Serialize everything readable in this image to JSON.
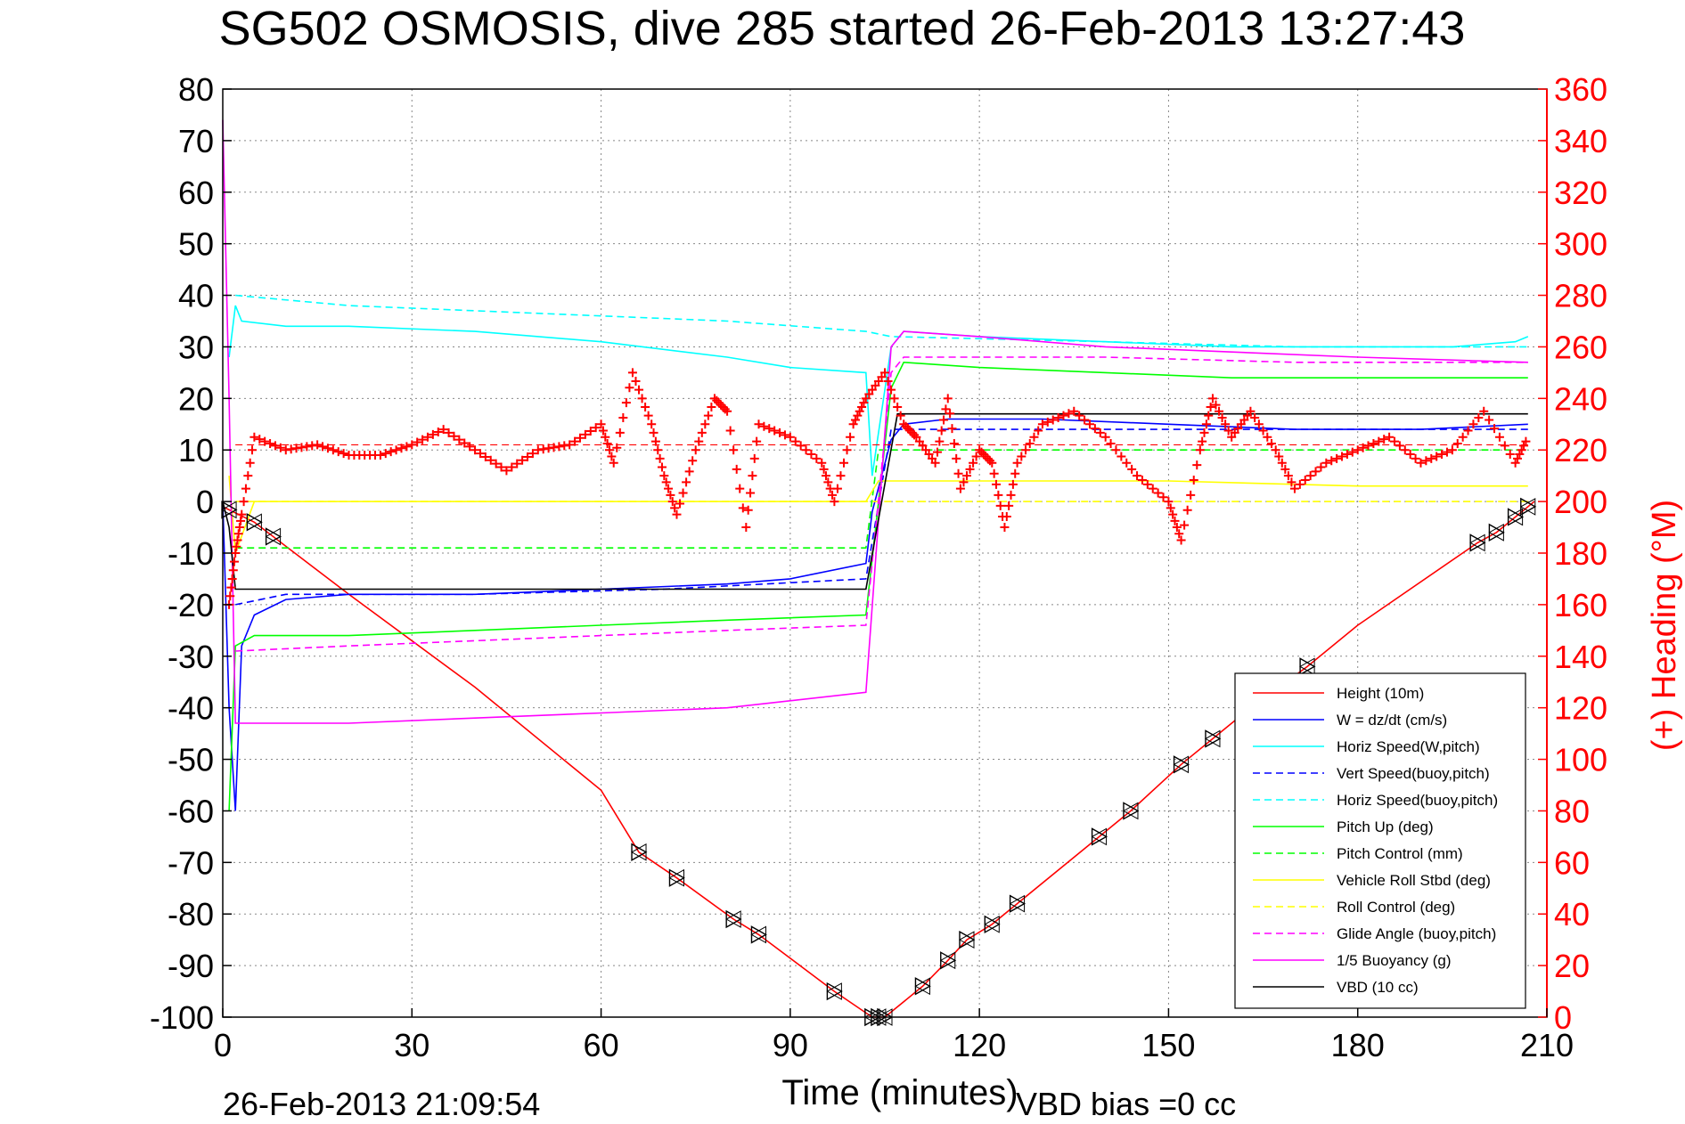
{
  "chart_data": {
    "type": "line",
    "title": "SG502 OSMOSIS, dive 285 started 26-Feb-2013 13:27:43",
    "xlabel": "Time (minutes)",
    "ylabel_right": "(+) Heading (°M)",
    "footer_left": "26-Feb-2013 21:09:54",
    "footer_right": "VBD bias =0 cc",
    "xlim": [
      0,
      210
    ],
    "ylim": [
      -100,
      80
    ],
    "ylim_right": [
      0,
      360
    ],
    "grid": true,
    "legend_position": "lower-right",
    "x_ticks": [
      "0",
      "30",
      "60",
      "90",
      "120",
      "150",
      "180",
      "210"
    ],
    "y_ticks": [
      "80",
      "70",
      "60",
      "50",
      "40",
      "30",
      "20",
      "10",
      "0",
      "-10",
      "-20",
      "-30",
      "-40",
      "-50",
      "-60",
      "-70",
      "-80",
      "-90",
      "-100"
    ],
    "y_ticks_right": [
      "360",
      "340",
      "320",
      "300",
      "280",
      "260",
      "240",
      "220",
      "200",
      "180",
      "160",
      "140",
      "120",
      "100",
      "80",
      "60",
      "40",
      "20",
      "0"
    ],
    "series": [
      {
        "name": "Height (10m)",
        "color": "#ff0000",
        "dash": "solid",
        "axis": "left",
        "points": [
          [
            0,
            -1
          ],
          [
            5,
            -4
          ],
          [
            20,
            -18
          ],
          [
            40,
            -36
          ],
          [
            60,
            -56
          ],
          [
            66,
            -68
          ],
          [
            72,
            -73
          ],
          [
            81,
            -81
          ],
          [
            85,
            -84
          ],
          [
            97,
            -95
          ],
          [
            103,
            -100
          ],
          [
            105,
            -100
          ],
          [
            111,
            -94
          ],
          [
            115,
            -89
          ],
          [
            118,
            -85
          ],
          [
            122,
            -82
          ],
          [
            126,
            -78
          ],
          [
            139,
            -65
          ],
          [
            144,
            -60
          ],
          [
            152,
            -51
          ],
          [
            157,
            -46
          ],
          [
            162,
            -41
          ],
          [
            172,
            -32
          ],
          [
            180,
            -24
          ],
          [
            199,
            -8
          ],
          [
            202,
            -6
          ],
          [
            205,
            -3
          ],
          [
            207,
            -1
          ],
          [
            208,
            0
          ]
        ]
      },
      {
        "name": "W = dz/dt (cm/s)",
        "color": "#0000ff",
        "dash": "solid",
        "axis": "left",
        "points": [
          [
            0,
            0
          ],
          [
            1,
            -40
          ],
          [
            2,
            -60
          ],
          [
            3,
            -28
          ],
          [
            5,
            -22
          ],
          [
            10,
            -19
          ],
          [
            20,
            -18
          ],
          [
            40,
            -18
          ],
          [
            60,
            -17
          ],
          [
            80,
            -16
          ],
          [
            90,
            -15
          ],
          [
            102,
            -12
          ],
          [
            103,
            -2
          ],
          [
            106,
            12
          ],
          [
            108,
            15
          ],
          [
            115,
            16
          ],
          [
            130,
            16
          ],
          [
            150,
            15
          ],
          [
            170,
            14
          ],
          [
            190,
            14
          ],
          [
            207,
            15
          ]
        ]
      },
      {
        "name": "Horiz Speed(W,pitch)",
        "color": "#00ffff",
        "dash": "solid",
        "axis": "left",
        "points": [
          [
            1,
            28
          ],
          [
            2,
            38
          ],
          [
            3,
            35
          ],
          [
            10,
            34
          ],
          [
            20,
            34
          ],
          [
            40,
            33
          ],
          [
            60,
            31
          ],
          [
            80,
            28
          ],
          [
            90,
            26
          ],
          [
            102,
            25
          ],
          [
            103,
            5
          ],
          [
            106,
            30
          ],
          [
            108,
            33
          ],
          [
            120,
            32
          ],
          [
            140,
            31
          ],
          [
            160,
            30
          ],
          [
            180,
            30
          ],
          [
            195,
            30
          ],
          [
            205,
            31
          ],
          [
            207,
            32
          ]
        ]
      },
      {
        "name": "Vert Speed(buoy,pitch)",
        "color": "#0000ff",
        "dash": "dashed",
        "axis": "left",
        "points": [
          [
            2,
            -20
          ],
          [
            10,
            -18
          ],
          [
            40,
            -18
          ],
          [
            70,
            -17
          ],
          [
            102,
            -15
          ],
          [
            106,
            14
          ],
          [
            140,
            14
          ],
          [
            180,
            14
          ],
          [
            207,
            14
          ]
        ]
      },
      {
        "name": "Horiz Speed(buoy,pitch)",
        "color": "#00ffff",
        "dash": "dashed",
        "axis": "left",
        "points": [
          [
            2,
            40
          ],
          [
            20,
            38
          ],
          [
            40,
            37
          ],
          [
            60,
            36
          ],
          [
            80,
            35
          ],
          [
            102,
            33
          ],
          [
            106,
            32
          ],
          [
            140,
            31
          ],
          [
            170,
            30
          ],
          [
            207,
            30
          ]
        ]
      },
      {
        "name": "Pitch Up (deg)",
        "color": "#00ff00",
        "dash": "solid",
        "axis": "left",
        "points": [
          [
            1,
            -60
          ],
          [
            2,
            -28
          ],
          [
            5,
            -26
          ],
          [
            20,
            -26
          ],
          [
            40,
            -25
          ],
          [
            60,
            -24
          ],
          [
            80,
            -23
          ],
          [
            102,
            -22
          ],
          [
            106,
            22
          ],
          [
            108,
            27
          ],
          [
            120,
            26
          ],
          [
            140,
            25
          ],
          [
            160,
            24
          ],
          [
            180,
            24
          ],
          [
            207,
            24
          ]
        ]
      },
      {
        "name": "Pitch Control (mm)",
        "color": "#00ff00",
        "dash": "dashed",
        "axis": "left",
        "points": [
          [
            2,
            -9
          ],
          [
            102,
            -9
          ],
          [
            104,
            10
          ],
          [
            207,
            10
          ]
        ]
      },
      {
        "name": "Vehicle Roll Stbd (deg)",
        "color": "#ffff00",
        "dash": "solid",
        "axis": "left",
        "points": [
          [
            1,
            5
          ],
          [
            2,
            -10
          ],
          [
            5,
            0
          ],
          [
            60,
            0
          ],
          [
            102,
            0
          ],
          [
            104,
            4
          ],
          [
            150,
            4
          ],
          [
            180,
            3
          ],
          [
            207,
            3
          ]
        ]
      },
      {
        "name": "Roll Control (deg)",
        "color": "#ffff00",
        "dash": "dashed",
        "axis": "left",
        "points": [
          [
            2,
            0
          ],
          [
            102,
            0
          ],
          [
            104,
            0
          ],
          [
            207,
            0
          ]
        ]
      },
      {
        "name": "Glide Angle (buoy,pitch)",
        "color": "#ff00ff",
        "dash": "dashed",
        "axis": "left",
        "points": [
          [
            2,
            -29
          ],
          [
            20,
            -28
          ],
          [
            40,
            -27
          ],
          [
            60,
            -26
          ],
          [
            80,
            -25
          ],
          [
            102,
            -24
          ],
          [
            106,
            25
          ],
          [
            108,
            28
          ],
          [
            140,
            28
          ],
          [
            170,
            27
          ],
          [
            207,
            27
          ]
        ]
      },
      {
        "name": "1/5 Buoyancy (g)",
        "color": "#ff00ff",
        "dash": "solid",
        "axis": "left",
        "points": [
          [
            0,
            74
          ],
          [
            1,
            20
          ],
          [
            2,
            -43
          ],
          [
            20,
            -43
          ],
          [
            40,
            -42
          ],
          [
            60,
            -41
          ],
          [
            80,
            -40
          ],
          [
            102,
            -37
          ],
          [
            106,
            30
          ],
          [
            108,
            33
          ],
          [
            120,
            32
          ],
          [
            140,
            30
          ],
          [
            160,
            29
          ],
          [
            180,
            28
          ],
          [
            207,
            27
          ]
        ]
      },
      {
        "name": "VBD (10 cc)",
        "color": "#000000",
        "dash": "solid",
        "axis": "left",
        "points": [
          [
            0,
            0
          ],
          [
            1,
            -5
          ],
          [
            2,
            -17
          ],
          [
            102,
            -17
          ],
          [
            107,
            17
          ],
          [
            207,
            17
          ]
        ]
      }
    ],
    "heading": {
      "color": "#ff0000",
      "marker": "+",
      "axis": "right",
      "points": [
        [
          1,
          160
        ],
        [
          2,
          180
        ],
        [
          3,
          195
        ],
        [
          5,
          225
        ],
        [
          10,
          220
        ],
        [
          15,
          222
        ],
        [
          20,
          218
        ],
        [
          25,
          218
        ],
        [
          30,
          222
        ],
        [
          35,
          228
        ],
        [
          40,
          220
        ],
        [
          45,
          212
        ],
        [
          50,
          220
        ],
        [
          55,
          222
        ],
        [
          60,
          230
        ],
        [
          62,
          215
        ],
        [
          65,
          250
        ],
        [
          68,
          230
        ],
        [
          70,
          210
        ],
        [
          72,
          195
        ],
        [
          75,
          220
        ],
        [
          78,
          240
        ],
        [
          80,
          235
        ],
        [
          83,
          190
        ],
        [
          85,
          230
        ],
        [
          90,
          225
        ],
        [
          95,
          215
        ],
        [
          97,
          200
        ],
        [
          100,
          230
        ],
        [
          102,
          240
        ],
        [
          105,
          250
        ],
        [
          108,
          230
        ],
        [
          110,
          225
        ],
        [
          113,
          215
        ],
        [
          115,
          240
        ],
        [
          117,
          205
        ],
        [
          120,
          220
        ],
        [
          122,
          215
        ],
        [
          124,
          190
        ],
        [
          126,
          215
        ],
        [
          130,
          230
        ],
        [
          135,
          235
        ],
        [
          140,
          225
        ],
        [
          145,
          210
        ],
        [
          150,
          200
        ],
        [
          152,
          185
        ],
        [
          155,
          220
        ],
        [
          157,
          240
        ],
        [
          160,
          225
        ],
        [
          163,
          235
        ],
        [
          167,
          220
        ],
        [
          170,
          205
        ],
        [
          175,
          215
        ],
        [
          180,
          220
        ],
        [
          185,
          225
        ],
        [
          190,
          215
        ],
        [
          195,
          220
        ],
        [
          200,
          235
        ],
        [
          205,
          215
        ],
        [
          207,
          225
        ]
      ]
    },
    "heading_control_deg": 222,
    "markers": {
      "type": "triangle",
      "x": [
        1,
        5,
        8,
        66,
        72,
        81,
        85,
        97,
        103,
        104,
        105,
        111,
        115,
        118,
        122,
        126,
        139,
        144,
        152,
        157,
        162,
        172,
        199,
        202,
        205,
        207
      ]
    }
  }
}
